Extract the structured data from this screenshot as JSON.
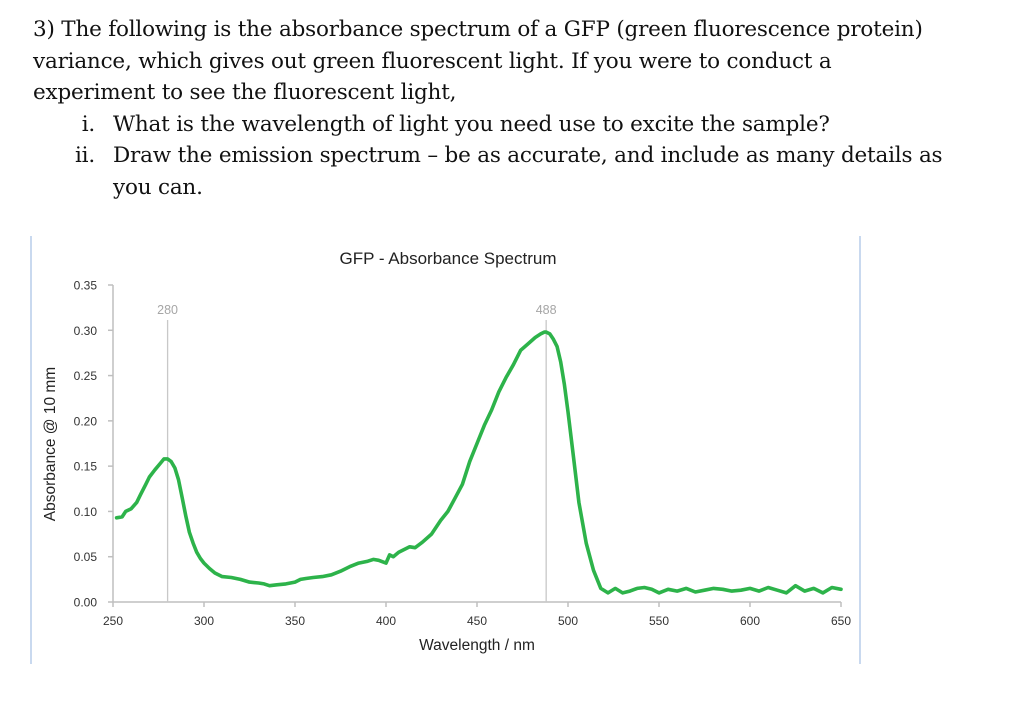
{
  "question": {
    "intro_lines": [
      "3) The following is the absorbance spectrum of a GFP (green fluorescence protein)",
      "variance, which gives out green fluorescent light. If you were to conduct a",
      "experiment to see the fluorescent light,"
    ],
    "items": [
      {
        "numeral": "i.",
        "lines": [
          "What is the wavelength of light you need use to excite the sample?"
        ]
      },
      {
        "numeral": "ii.",
        "lines": [
          "Draw the emission spectrum – be as accurate, and include as many details as",
          "you can."
        ]
      }
    ]
  },
  "colors": {
    "series": "#2db34a",
    "axis": "#bfbfbf",
    "marker_line": "#c8c8c8",
    "marker_label": "#a6a6a6",
    "frame": "#c9d9ef"
  },
  "chart_data": {
    "type": "line",
    "title": "GFP - Absorbance Spectrum",
    "xlabel": "Wavelength / nm",
    "ylabel": "Absorbance @ 10 mm",
    "xlim": [
      250,
      650
    ],
    "ylim": [
      0,
      0.35
    ],
    "x_ticks": [
      "250",
      "300",
      "350",
      "400",
      "450",
      "500",
      "550",
      "600",
      "650"
    ],
    "y_ticks": [
      "0.00",
      "0.05",
      "0.10",
      "0.15",
      "0.20",
      "0.25",
      "0.30",
      "0.35"
    ],
    "grid": false,
    "legend": "none",
    "annotations": [
      {
        "label": "280",
        "x": 280,
        "type": "vertical-line"
      },
      {
        "label": "488",
        "x": 488,
        "type": "vertical-line"
      }
    ],
    "series": [
      {
        "name": "GFP absorbance",
        "x": [
          252,
          255,
          257,
          260,
          263,
          265,
          268,
          270,
          273,
          276,
          278,
          280,
          282,
          284,
          286,
          288,
          290,
          292,
          294,
          296,
          298,
          300,
          303,
          306,
          310,
          315,
          320,
          325,
          330,
          333,
          336,
          340,
          345,
          350,
          353,
          356,
          360,
          365,
          370,
          375,
          380,
          385,
          390,
          393,
          396,
          400,
          402,
          404,
          407,
          410,
          413,
          416,
          420,
          425,
          430,
          434,
          438,
          442,
          446,
          450,
          454,
          458,
          462,
          466,
          470,
          474,
          478,
          482,
          485,
          487,
          488,
          490,
          492,
          494,
          496,
          498,
          500,
          503,
          506,
          510,
          514,
          518,
          522,
          526,
          530,
          534,
          538,
          542,
          546,
          550,
          555,
          560,
          565,
          570,
          575,
          580,
          585,
          590,
          595,
          600,
          605,
          610,
          615,
          620,
          625,
          630,
          635,
          640,
          645,
          650
        ],
        "values": [
          0.093,
          0.094,
          0.1,
          0.103,
          0.11,
          0.118,
          0.13,
          0.138,
          0.146,
          0.153,
          0.158,
          0.158,
          0.155,
          0.148,
          0.135,
          0.115,
          0.095,
          0.077,
          0.065,
          0.055,
          0.048,
          0.043,
          0.037,
          0.032,
          0.028,
          0.027,
          0.025,
          0.022,
          0.021,
          0.02,
          0.018,
          0.019,
          0.02,
          0.022,
          0.025,
          0.026,
          0.027,
          0.028,
          0.03,
          0.034,
          0.039,
          0.043,
          0.045,
          0.047,
          0.046,
          0.043,
          0.052,
          0.05,
          0.055,
          0.058,
          0.061,
          0.06,
          0.066,
          0.075,
          0.09,
          0.1,
          0.115,
          0.13,
          0.155,
          0.175,
          0.195,
          0.212,
          0.232,
          0.248,
          0.262,
          0.278,
          0.285,
          0.292,
          0.296,
          0.298,
          0.298,
          0.296,
          0.29,
          0.282,
          0.265,
          0.24,
          0.21,
          0.16,
          0.11,
          0.065,
          0.035,
          0.015,
          0.01,
          0.015,
          0.01,
          0.012,
          0.015,
          0.016,
          0.014,
          0.01,
          0.014,
          0.012,
          0.015,
          0.011,
          0.013,
          0.015,
          0.014,
          0.012,
          0.013,
          0.015,
          0.012,
          0.016,
          0.013,
          0.01,
          0.018,
          0.012,
          0.015,
          0.01,
          0.016,
          0.014
        ]
      }
    ]
  }
}
